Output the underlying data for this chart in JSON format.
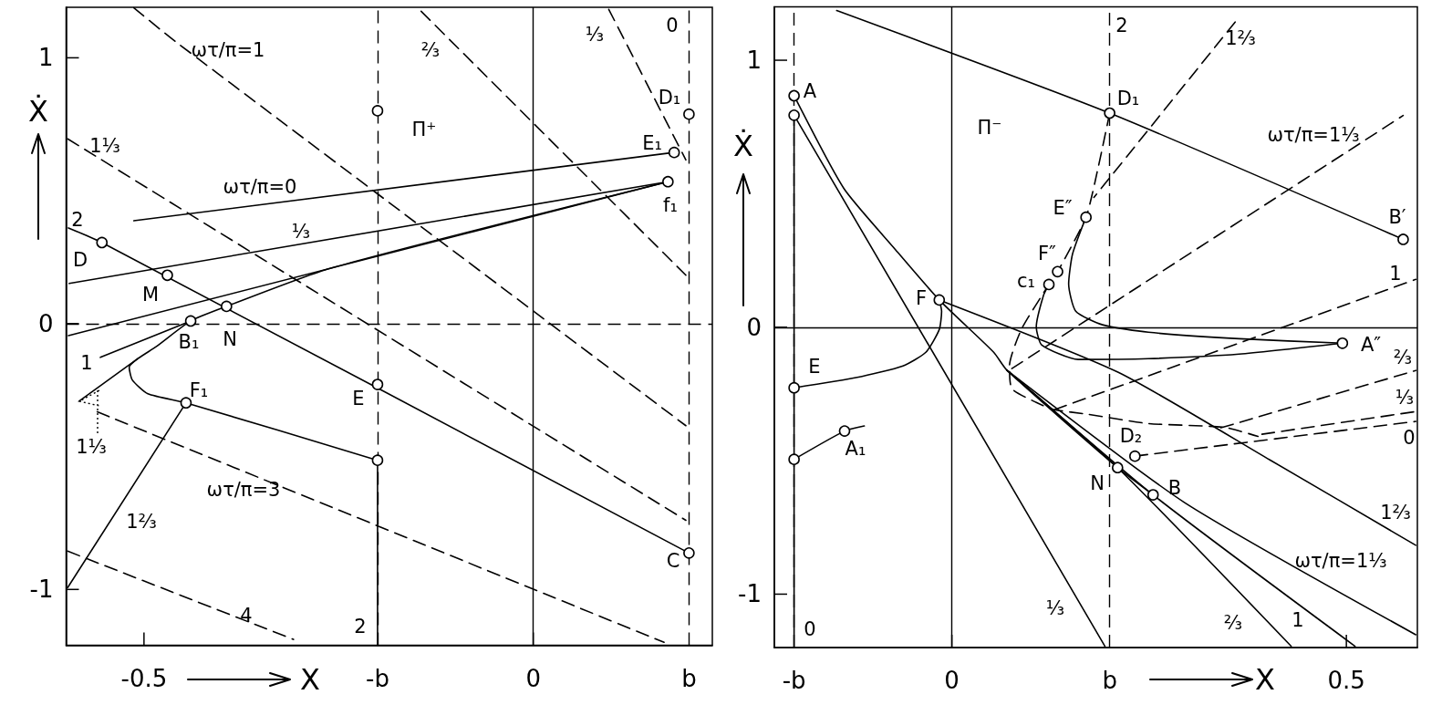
{
  "chart_data": [
    {
      "type": "line",
      "xlabel": "X",
      "ylabel": "Ẋ",
      "xlim": [
        -0.6,
        0.23
      ],
      "ylim": [
        -1.21,
        1.19
      ],
      "xticks": [
        -0.5,
        0
      ],
      "yticks": [
        1,
        0,
        -1
      ],
      "series": [
        {
          "color": "#000000",
          "line_style": "dashed",
          "x": [
            0.097,
            0.196
          ],
          "values": [
            1.182,
            0.616
          ]
        },
        {
          "color": "#000000",
          "line_style": "dashed",
          "x": [
            -0.144,
            0.196
          ],
          "values": [
            1.175,
            0.182
          ]
        },
        {
          "color": "#000000",
          "line_style": "dashed",
          "x": [
            -0.513,
            -0.46,
            0.196
          ],
          "values": [
            1.188,
            1.062,
            -0.384
          ]
        },
        {
          "color": "#000000",
          "line_style": "dashed",
          "x": [
            -0.598,
            0.196
          ],
          "values": [
            0.695,
            -0.74
          ]
        },
        {
          "color": "#000000",
          "line_style": "dashed",
          "x": [
            -0.56,
            0.168
          ],
          "values": [
            -0.332,
            -1.199
          ]
        },
        {
          "color": "#000000",
          "line_style": "dashed",
          "x": [
            -0.598,
            -0.308
          ],
          "values": [
            -0.856,
            -1.188
          ]
        },
        {
          "color": "#000000",
          "x": [
            -0.597,
            -0.554,
            0.2
          ],
          "values": [
            0.36,
            0.305,
            -0.863
          ]
        },
        {
          "color": "#000000",
          "x": [
            -0.513,
            0.181
          ],
          "values": [
            0.387,
            0.644
          ]
        },
        {
          "color": "#000000",
          "x": [
            -0.596,
            0.173
          ],
          "values": [
            0.151,
            0.534
          ]
        },
        {
          "color": "#000000",
          "x": [
            -0.597,
            0.173
          ],
          "values": [
            -0.045,
            0.534
          ]
        },
        {
          "color": "#000000",
          "x": [
            -0.2,
            -0.446,
            -0.495,
            -0.515,
            -0.519,
            -0.507,
            -0.484,
            -0.44,
            -0.394,
            -0.261,
            0.173
          ],
          "values": [
            -0.514,
            -0.298,
            -0.264,
            -0.212,
            -0.164,
            -0.13,
            -0.086,
            0.01,
            0.065,
            0.208,
            0.534
          ]
        },
        {
          "color": "#000000",
          "x": [
            -0.2,
            -0.2
          ],
          "values": [
            -0.514,
            -1.21
          ]
        },
        {
          "color": "#000000",
          "x": [
            -0.598,
            -0.446
          ],
          "values": [
            -0.993,
            -0.298
          ]
        },
        {
          "color": "#000000",
          "x": [
            -0.583,
            -0.507
          ],
          "values": [
            -0.291,
            -0.13
          ]
        },
        {
          "color": "#000000",
          "x": [
            -0.556,
            -0.44
          ],
          "values": [
            -0.127,
            0.01
          ]
        },
        {
          "type": "scatter",
          "marker": "circle",
          "color": "#000000",
          "x": [
            -0.554,
            -0.47,
            -0.394,
            -0.44,
            -0.2,
            -0.446,
            -0.2,
            -0.2,
            0.2,
            0.181,
            0.173,
            0.2
          ],
          "values": [
            0.305,
            0.182,
            0.065,
            0.01,
            -0.229,
            -0.298,
            -0.514,
            0.801,
            0.788,
            0.644,
            0.534,
            -0.863
          ]
        }
      ],
      "ref_lines": [
        {
          "axis": "x",
          "value": -0.2,
          "label": "-b",
          "line_style": "dashed",
          "color": "#000000"
        },
        {
          "axis": "x",
          "value": 0,
          "color": "#000000"
        },
        {
          "axis": "x",
          "value": 0.2,
          "label": "b",
          "line_style": "dashed",
          "color": "#000000"
        },
        {
          "axis": "y",
          "value": 0,
          "line_style": "dashed",
          "color": "#000000"
        }
      ],
      "annotations": [
        "ωτ/π=1",
        "⅔",
        "⅓",
        "0",
        "Π⁺",
        "D₁",
        "E₁",
        "f₁",
        "1⅓",
        "ωτ/π=0",
        "2",
        "D",
        "⅓",
        "M",
        "N",
        "B₁",
        "1",
        "F₁",
        {
          "text": "1⅓",
          "x": -0.583,
          "y": -0.291
        },
        "E",
        "ωτ/π=3",
        "1⅔",
        "4",
        "2",
        "C"
      ]
    },
    {
      "type": "line",
      "xlabel": "X",
      "ylabel": "Ẋ",
      "xlim": [
        -0.225,
        0.59
      ],
      "ylim": [
        -1.2,
        1.2
      ],
      "xticks": [
        0,
        0.5
      ],
      "yticks": [
        1,
        0,
        -1
      ],
      "series": [
        {
          "color": "#000000",
          "x": [
            -0.146,
            0.2,
            0.572
          ],
          "values": [
            1.186,
            0.802,
            0.329
          ]
        },
        {
          "color": "#000000",
          "line_style": "dashed",
          "x": [
            0.2,
            0.186,
            0.17,
            0.134,
            0.123,
            0.088,
            0.073,
            0.076,
            0.107,
            0.13,
            0.172,
            0.249,
            0.345,
            0.388
          ],
          "values": [
            0.802,
            0.606,
            0.412,
            0.208,
            0.16,
            -0.009,
            -0.145,
            -0.23,
            -0.282,
            -0.309,
            -0.326,
            -0.361,
            -0.375,
            -0.409
          ]
        },
        {
          "color": "#000000",
          "line_style": "dashed",
          "x": [
            0.359,
            0.18
          ],
          "values": [
            1.143,
            0.486
          ]
        },
        {
          "color": "#000000",
          "line_style": "dashed",
          "x": [
            0.076,
            0.572
          ],
          "values": [
            -0.155,
            0.793
          ]
        },
        {
          "color": "#000000",
          "line_style": "dashed",
          "x": [
            0.13,
            0.588
          ],
          "values": [
            -0.309,
            0.179
          ]
        },
        {
          "color": "#000000",
          "line_style": "dashed",
          "x": [
            0.341,
            0.588
          ],
          "values": [
            -0.377,
            -0.162
          ]
        },
        {
          "color": "#000000",
          "line_style": "dashed",
          "x": [
            0.393,
            0.588
          ],
          "values": [
            -0.401,
            -0.316
          ]
        },
        {
          "color": "#000000",
          "line_style": "dashed",
          "x": [
            0.232,
            0.588
          ],
          "values": [
            -0.483,
            -0.353
          ]
        },
        {
          "color": "#000000",
          "x": [
            -0.2,
            -0.137,
            -0.074,
            -0.016,
            0.053,
            0.07,
            0.21,
            0.255
          ],
          "values": [
            0.867,
            0.52,
            0.299,
            0.102,
            -0.094,
            -0.162,
            -0.526,
            -0.628
          ]
        },
        {
          "color": "#000000",
          "x": [
            -0.2,
            0.194
          ],
          "values": [
            0.794,
            -1.195
          ]
        },
        {
          "color": "#000000",
          "x": [
            0.07,
            0.21,
            0.43
          ],
          "values": [
            -0.162,
            -0.526,
            -1.195
          ]
        },
        {
          "color": "#000000",
          "x": [
            0.07,
            0.255,
            0.511
          ],
          "values": [
            -0.162,
            -0.628,
            -1.195
          ]
        },
        {
          "color": "#000000",
          "x": [
            0.07,
            0.295,
            0.588
          ],
          "values": [
            -0.162,
            -0.657,
            -1.152
          ]
        },
        {
          "color": "#000000",
          "x": [
            -0.016,
            0.211,
            0.403,
            0.588
          ],
          "values": [
            0.102,
            -0.169,
            -0.497,
            -0.817
          ]
        },
        {
          "color": "#000000",
          "x": [
            -0.2,
            -0.12,
            -0.062,
            -0.033,
            -0.016,
            -0.013,
            -0.016
          ],
          "values": [
            -0.227,
            -0.188,
            -0.145,
            -0.094,
            -0.009,
            0.06,
            0.102
          ]
        },
        {
          "color": "#000000",
          "x": [
            -0.2,
            -0.136,
            -0.111
          ],
          "values": [
            -0.495,
            -0.389,
            -0.37
          ]
        },
        {
          "color": "#000000",
          "x": [
            0.123,
            0.116,
            0.107,
            0.114,
            0.16,
            0.249,
            0.364,
            0.495
          ],
          "values": [
            0.16,
            0.118,
            0.002,
            -0.067,
            -0.121,
            -0.118,
            -0.101,
            -0.06
          ]
        },
        {
          "color": "#000000",
          "x": [
            0.17,
            0.153,
            0.148,
            0.157,
            0.191,
            0.249,
            0.364,
            0.495
          ],
          "values": [
            0.412,
            0.275,
            0.162,
            0.06,
            0.009,
            -0.019,
            -0.043,
            -0.06
          ]
        },
        {
          "color": "#000000",
          "x": [
            -0.2,
            -0.2
          ],
          "values": [
            0.794,
            -1.2
          ]
        },
        {
          "type": "scatter",
          "marker": "circle",
          "color": "#000000",
          "x": [
            -0.2,
            -0.2,
            -0.016,
            0.2,
            0.17,
            0.134,
            0.123,
            0.572,
            0.495,
            -0.2,
            -0.2,
            -0.136,
            0.232,
            0.21,
            0.255
          ],
          "values": [
            0.867,
            0.794,
            0.102,
            0.802,
            0.412,
            0.208,
            0.16,
            0.329,
            -0.06,
            -0.227,
            -0.495,
            -0.389,
            -0.483,
            -0.526,
            -0.628
          ]
        }
      ],
      "ref_lines": [
        {
          "axis": "x",
          "value": -0.2,
          "label": "-b",
          "line_style": "dashed",
          "color": "#000000"
        },
        {
          "axis": "x",
          "value": 0,
          "color": "#000000"
        },
        {
          "axis": "x",
          "value": 0.2,
          "label": "b",
          "line_style": "dashed",
          "color": "#000000"
        },
        {
          "axis": "y",
          "value": 0,
          "color": "#000000"
        }
      ],
      "annotations": [
        "A",
        "Π⁻",
        "2",
        "1⅔",
        "D₁",
        "ωτ/π=1⅓",
        "B′",
        "E″",
        "F″",
        "c₁",
        "F",
        "1",
        "A″",
        "E",
        "⅔",
        "⅓",
        "0",
        "A₁",
        "D₂",
        "N",
        "B",
        "1⅔",
        "ωτ/π=1⅓",
        "⅓",
        "⅔",
        "1",
        "0"
      ]
    }
  ]
}
